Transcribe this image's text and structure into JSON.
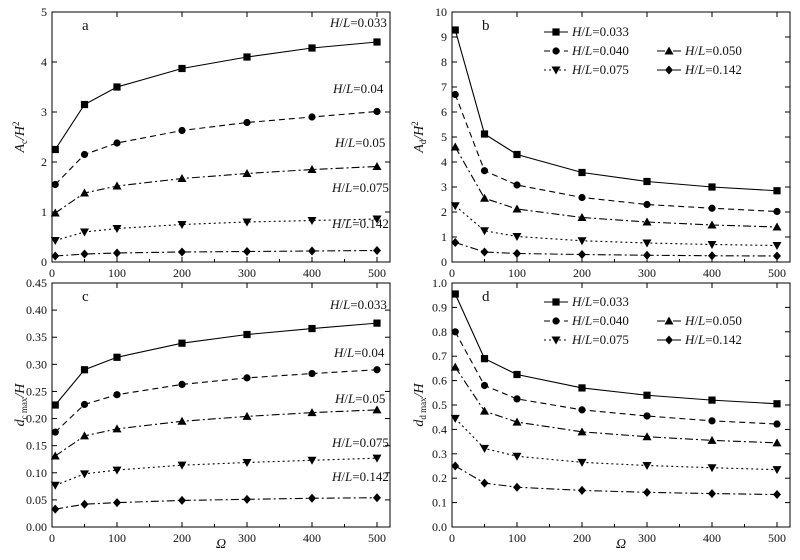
{
  "x_axis_label": "Ω",
  "chart_data": [
    {
      "panel": "a",
      "type": "line",
      "ylabel_html": [
        "A",
        "c",
        "/H",
        "2"
      ],
      "xlim": [
        0,
        520
      ],
      "ylim": [
        0,
        5
      ],
      "xticks": [
        0,
        100,
        200,
        300,
        400,
        500
      ],
      "yticks": [
        0,
        1,
        2,
        3,
        4,
        5
      ],
      "xtick_labels": [
        "0",
        "100",
        "200",
        "300",
        "400",
        "500"
      ],
      "ytick_labels": [
        "0",
        "1",
        "2",
        "3",
        "4",
        "5"
      ],
      "legend": "inline",
      "x": [
        5,
        50,
        100,
        200,
        300,
        400,
        500
      ],
      "series": [
        {
          "name": "H/L=0.033",
          "marker": "square",
          "dash": "solid",
          "values": [
            2.25,
            3.15,
            3.5,
            3.87,
            4.1,
            4.28,
            4.4
          ]
        },
        {
          "name": "H/L=0.04",
          "marker": "circle",
          "dash": "dash",
          "values": [
            1.55,
            2.15,
            2.38,
            2.63,
            2.79,
            2.9,
            3.01
          ]
        },
        {
          "name": "H/L=0.05",
          "marker": "triangle-up",
          "dash": "dashdot",
          "values": [
            0.98,
            1.38,
            1.52,
            1.67,
            1.77,
            1.85,
            1.91
          ]
        },
        {
          "name": "H/L=0.075",
          "marker": "triangle-down",
          "dash": "dot",
          "values": [
            0.43,
            0.6,
            0.67,
            0.75,
            0.8,
            0.83,
            0.86
          ]
        },
        {
          "name": "H/L=0.142",
          "marker": "diamond",
          "dash": "dashdot",
          "values": [
            0.12,
            0.16,
            0.18,
            0.2,
            0.21,
            0.22,
            0.23
          ]
        }
      ]
    },
    {
      "panel": "b",
      "type": "line",
      "ylabel_html": [
        "A",
        "d",
        "/H",
        "2"
      ],
      "xlim": [
        0,
        520
      ],
      "ylim": [
        0,
        10
      ],
      "xticks": [
        0,
        100,
        200,
        300,
        400,
        500
      ],
      "yticks": [
        0,
        1,
        2,
        3,
        4,
        5,
        6,
        7,
        8,
        9,
        10
      ],
      "xtick_labels": [
        "0",
        "100",
        "200",
        "300",
        "400",
        "500"
      ],
      "ytick_labels": [
        "0",
        "1",
        "2",
        "3",
        "4",
        "5",
        "6",
        "7",
        "8",
        "9",
        "10"
      ],
      "legend": "top-right",
      "x": [
        5,
        50,
        100,
        200,
        300,
        400,
        500
      ],
      "series": [
        {
          "name": "H/L=0.033",
          "marker": "square",
          "dash": "solid",
          "values": [
            9.28,
            5.12,
            4.3,
            3.58,
            3.22,
            3.0,
            2.85
          ]
        },
        {
          "name": "H/L=0.040",
          "marker": "circle",
          "dash": "dash",
          "values": [
            6.7,
            3.65,
            3.08,
            2.58,
            2.3,
            2.15,
            2.02
          ]
        },
        {
          "name": "H/L=0.050",
          "marker": "triangle-up",
          "dash": "dashdot",
          "values": [
            4.6,
            2.55,
            2.12,
            1.78,
            1.6,
            1.48,
            1.4
          ]
        },
        {
          "name": "H/L=0.075",
          "marker": "triangle-down",
          "dash": "dot",
          "values": [
            2.25,
            1.25,
            1.02,
            0.85,
            0.76,
            0.7,
            0.66
          ]
        },
        {
          "name": "H/L=0.142",
          "marker": "diamond",
          "dash": "dashdot",
          "values": [
            0.78,
            0.4,
            0.34,
            0.3,
            0.27,
            0.25,
            0.24
          ]
        }
      ]
    },
    {
      "panel": "c",
      "type": "line",
      "ylabel_html": [
        "d",
        "c max",
        "/H",
        ""
      ],
      "xlim": [
        0,
        520
      ],
      "ylim": [
        0,
        0.45
      ],
      "xticks": [
        0,
        100,
        200,
        300,
        400,
        500
      ],
      "yticks": [
        0,
        0.05,
        0.1,
        0.15,
        0.2,
        0.25,
        0.3,
        0.35,
        0.4,
        0.45
      ],
      "xtick_labels": [
        "0",
        "100",
        "200",
        "300",
        "400",
        "500"
      ],
      "ytick_labels": [
        "0.00",
        "0.05",
        "0.10",
        "0.15",
        "0.20",
        "0.25",
        "0.30",
        "0.35",
        "0.40",
        "0.45"
      ],
      "legend": "inline",
      "x": [
        5,
        50,
        100,
        200,
        300,
        400,
        500
      ],
      "series": [
        {
          "name": "H/L=0.033",
          "marker": "square",
          "dash": "solid",
          "values": [
            0.225,
            0.29,
            0.313,
            0.339,
            0.355,
            0.366,
            0.376
          ]
        },
        {
          "name": "H/L=0.04",
          "marker": "circle",
          "dash": "dash",
          "values": [
            0.175,
            0.226,
            0.244,
            0.263,
            0.275,
            0.283,
            0.29
          ]
        },
        {
          "name": "H/L=0.05",
          "marker": "triangle-up",
          "dash": "dashdot",
          "values": [
            0.131,
            0.168,
            0.181,
            0.195,
            0.204,
            0.211,
            0.216
          ]
        },
        {
          "name": "H/L=0.075",
          "marker": "triangle-down",
          "dash": "dot",
          "values": [
            0.077,
            0.098,
            0.105,
            0.114,
            0.119,
            0.123,
            0.127
          ]
        },
        {
          "name": "H/L=0.142",
          "marker": "diamond",
          "dash": "dashdot",
          "values": [
            0.033,
            0.042,
            0.045,
            0.049,
            0.051,
            0.053,
            0.054
          ]
        }
      ]
    },
    {
      "panel": "d",
      "type": "line",
      "ylabel_html": [
        "d",
        "d max",
        "/H",
        ""
      ],
      "xlim": [
        0,
        520
      ],
      "ylim": [
        0,
        1.0
      ],
      "xticks": [
        0,
        100,
        200,
        300,
        400,
        500
      ],
      "yticks": [
        0,
        0.1,
        0.2,
        0.3,
        0.4,
        0.5,
        0.6,
        0.7,
        0.8,
        0.9,
        1.0
      ],
      "xtick_labels": [
        "0",
        "100",
        "200",
        "300",
        "400",
        "500"
      ],
      "ytick_labels": [
        "0.0",
        "0.1",
        "0.2",
        "0.3",
        "0.4",
        "0.5",
        "0.6",
        "0.7",
        "0.8",
        "0.9",
        "1.0"
      ],
      "legend": "top-right",
      "x": [
        5,
        50,
        100,
        200,
        300,
        400,
        500
      ],
      "series": [
        {
          "name": "H/L=0.033",
          "marker": "square",
          "dash": "solid",
          "values": [
            0.955,
            0.69,
            0.625,
            0.57,
            0.54,
            0.52,
            0.505
          ]
        },
        {
          "name": "H/L=0.040",
          "marker": "circle",
          "dash": "dash",
          "values": [
            0.8,
            0.58,
            0.525,
            0.48,
            0.455,
            0.435,
            0.422
          ]
        },
        {
          "name": "H/L=0.050",
          "marker": "triangle-up",
          "dash": "dashdot",
          "values": [
            0.655,
            0.475,
            0.43,
            0.39,
            0.37,
            0.355,
            0.345
          ]
        },
        {
          "name": "H/L=0.075",
          "marker": "triangle-down",
          "dash": "dot",
          "values": [
            0.445,
            0.322,
            0.29,
            0.265,
            0.252,
            0.243,
            0.235
          ]
        },
        {
          "name": "H/L=0.142",
          "marker": "diamond",
          "dash": "dashdot",
          "values": [
            0.25,
            0.18,
            0.163,
            0.15,
            0.142,
            0.137,
            0.133
          ]
        }
      ]
    }
  ]
}
